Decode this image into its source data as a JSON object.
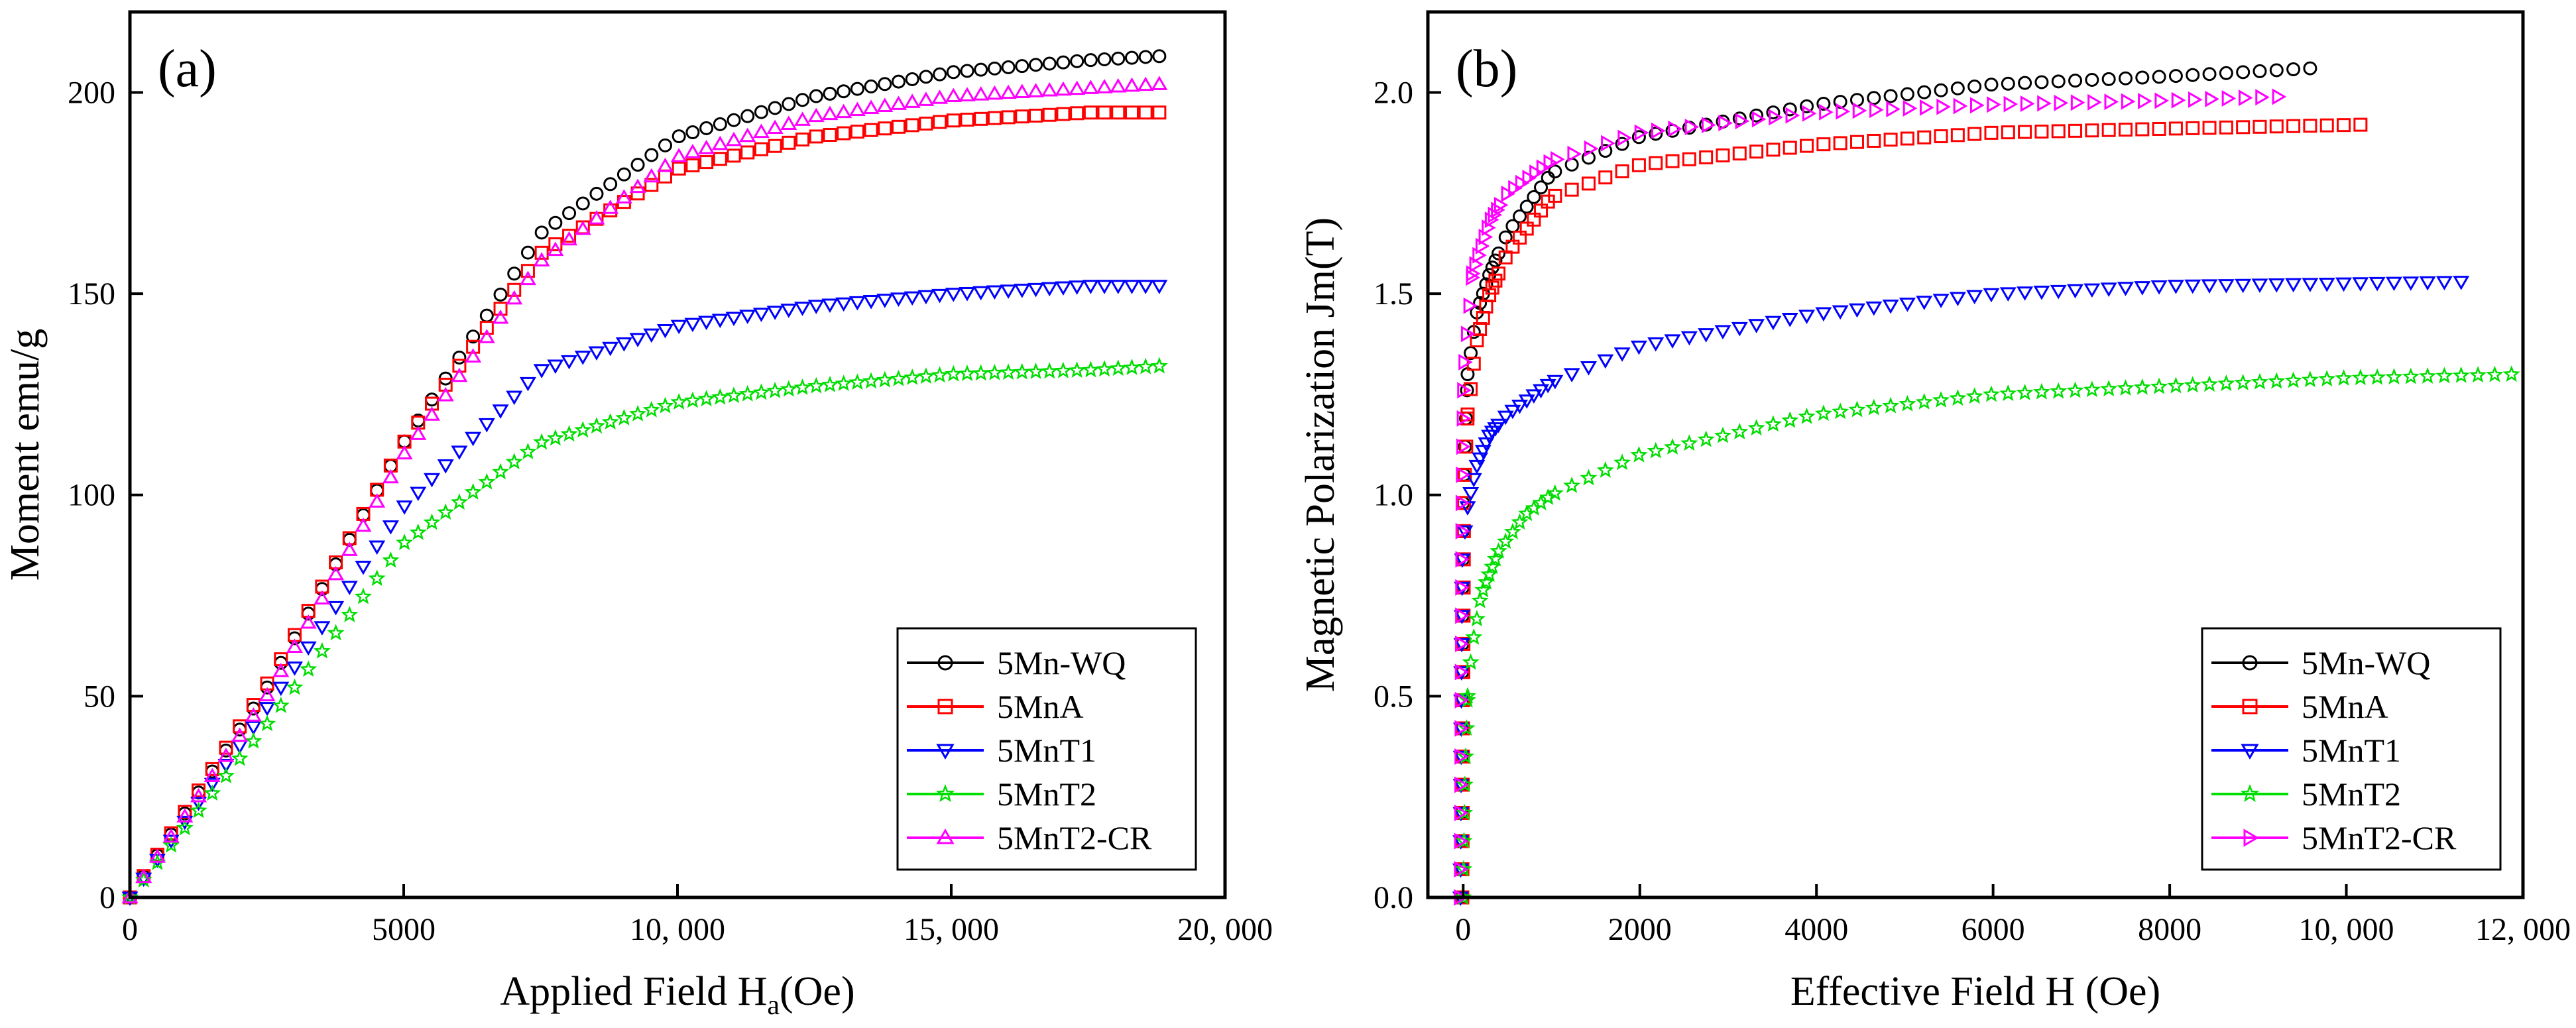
{
  "chart_data": [
    {
      "type": "scatter",
      "panel_label": "(a)",
      "xlabel": "Applied Field H",
      "xlabel_sub": "a",
      "xlabel_tail": "(Oe)",
      "ylabel": "Moment emu/g",
      "xlim": [
        0,
        20000
      ],
      "ylim": [
        0,
        220
      ],
      "xticks": [
        0,
        5000,
        10000,
        15000,
        20000
      ],
      "xtick_labels": [
        "0",
        "5000",
        "10, 000",
        "15, 000",
        "20, 000"
      ],
      "yticks": [
        0,
        50,
        100,
        150,
        200
      ],
      "ytick_labels": [
        "0",
        "50",
        "100",
        "150",
        "200"
      ],
      "legend_position": "bottom-right",
      "series": [
        {
          "name": "5Mn-WQ",
          "color": "#000000",
          "marker": "circle",
          "x": [
            0,
            2500,
            5000,
            7500,
            10000,
            12500,
            15000,
            17500,
            18800
          ],
          "y": [
            0,
            52,
            113,
            165,
            189,
            199,
            205,
            208,
            209
          ]
        },
        {
          "name": "5MnA",
          "color": "#ff0000",
          "marker": "square",
          "x": [
            0,
            2500,
            5000,
            7500,
            10000,
            12500,
            15000,
            17500,
            18800
          ],
          "y": [
            0,
            53,
            113,
            160,
            181,
            189,
            193,
            195,
            195
          ]
        },
        {
          "name": "5MnT1",
          "color": "#0000ff",
          "marker": "triangle-down",
          "x": [
            0,
            2500,
            5000,
            7500,
            10000,
            12500,
            15000,
            17500,
            18800
          ],
          "y": [
            0,
            47,
            97,
            131,
            142,
            147,
            150,
            152,
            152
          ]
        },
        {
          "name": "5MnT2",
          "color": "#00dd00",
          "marker": "star",
          "x": [
            0,
            2500,
            5000,
            7500,
            10000,
            12500,
            15000,
            17500,
            18800
          ],
          "y": [
            0,
            43,
            88,
            113,
            123,
            127,
            130,
            131,
            132
          ]
        },
        {
          "name": "5MnT2-CR",
          "color": "#ff00ff",
          "marker": "triangle-up",
          "x": [
            0,
            2500,
            5000,
            7500,
            10000,
            12500,
            15000,
            17500,
            18800
          ],
          "y": [
            0,
            50,
            110,
            158,
            184,
            194,
            199,
            201,
            202
          ]
        }
      ]
    },
    {
      "type": "scatter",
      "panel_label": "(b)",
      "xlabel": "Effective Field H (Oe)",
      "ylabel": "Magnetic Polarization Jm(T)",
      "xlim": [
        -400,
        12000
      ],
      "ylim": [
        0,
        2.2
      ],
      "xticks": [
        0,
        2000,
        4000,
        6000,
        8000,
        10000,
        12000
      ],
      "xtick_labels": [
        "0",
        "2000",
        "4000",
        "6000",
        "8000",
        "10, 000",
        "12, 000"
      ],
      "yticks": [
        0,
        0.5,
        1.0,
        1.5,
        2.0
      ],
      "ytick_labels": [
        "0.0",
        "0.5",
        "1.0",
        "1.5",
        "2.0"
      ],
      "legend_position": "bottom-right",
      "series": [
        {
          "name": "5Mn-WQ",
          "color": "#000000",
          "marker": "circle",
          "x": [
            -20,
            -10,
            0,
            50,
            150,
            300,
            500,
            1000,
            2000,
            4000,
            6000,
            8000,
            9600
          ],
          "y": [
            0.0,
            0.5,
            1.0,
            1.3,
            1.45,
            1.55,
            1.65,
            1.8,
            1.89,
            1.97,
            2.02,
            2.04,
            2.06
          ]
        },
        {
          "name": "5MnA",
          "color": "#ff0000",
          "marker": "square",
          "x": [
            -10,
            0,
            10,
            50,
            150,
            300,
            500,
            1000,
            2000,
            4000,
            6000,
            8000,
            10200
          ],
          "y": [
            0.0,
            0.5,
            1.0,
            1.2,
            1.38,
            1.5,
            1.6,
            1.74,
            1.82,
            1.87,
            1.9,
            1.91,
            1.92
          ]
        },
        {
          "name": "5MnT1",
          "color": "#0000ff",
          "marker": "triangle-down",
          "x": [
            -30,
            -20,
            -10,
            50,
            150,
            300,
            500,
            1000,
            2000,
            4000,
            6000,
            8000,
            11300
          ],
          "y": [
            0.0,
            0.5,
            0.85,
            0.97,
            1.07,
            1.15,
            1.2,
            1.28,
            1.37,
            1.45,
            1.5,
            1.52,
            1.53
          ]
        },
        {
          "name": "5MnT2",
          "color": "#00dd00",
          "marker": "star",
          "x": [
            0,
            20,
            50,
            100,
            200,
            400,
            700,
            1000,
            2000,
            4000,
            6000,
            8000,
            10000,
            12000
          ],
          "y": [
            0.0,
            0.3,
            0.5,
            0.62,
            0.75,
            0.86,
            0.95,
            1.0,
            1.1,
            1.2,
            1.25,
            1.27,
            1.29,
            1.3
          ]
        },
        {
          "name": "5MnT2-CR",
          "color": "#ff00ff",
          "marker": "triangle-right",
          "x": [
            -40,
            -30,
            -20,
            0,
            100,
            300,
            500,
            1000,
            2000,
            4000,
            6000,
            8000,
            9300
          ],
          "y": [
            0.0,
            0.5,
            1.0,
            1.3,
            1.55,
            1.68,
            1.75,
            1.83,
            1.9,
            1.95,
            1.97,
            1.98,
            1.99
          ]
        }
      ]
    }
  ]
}
